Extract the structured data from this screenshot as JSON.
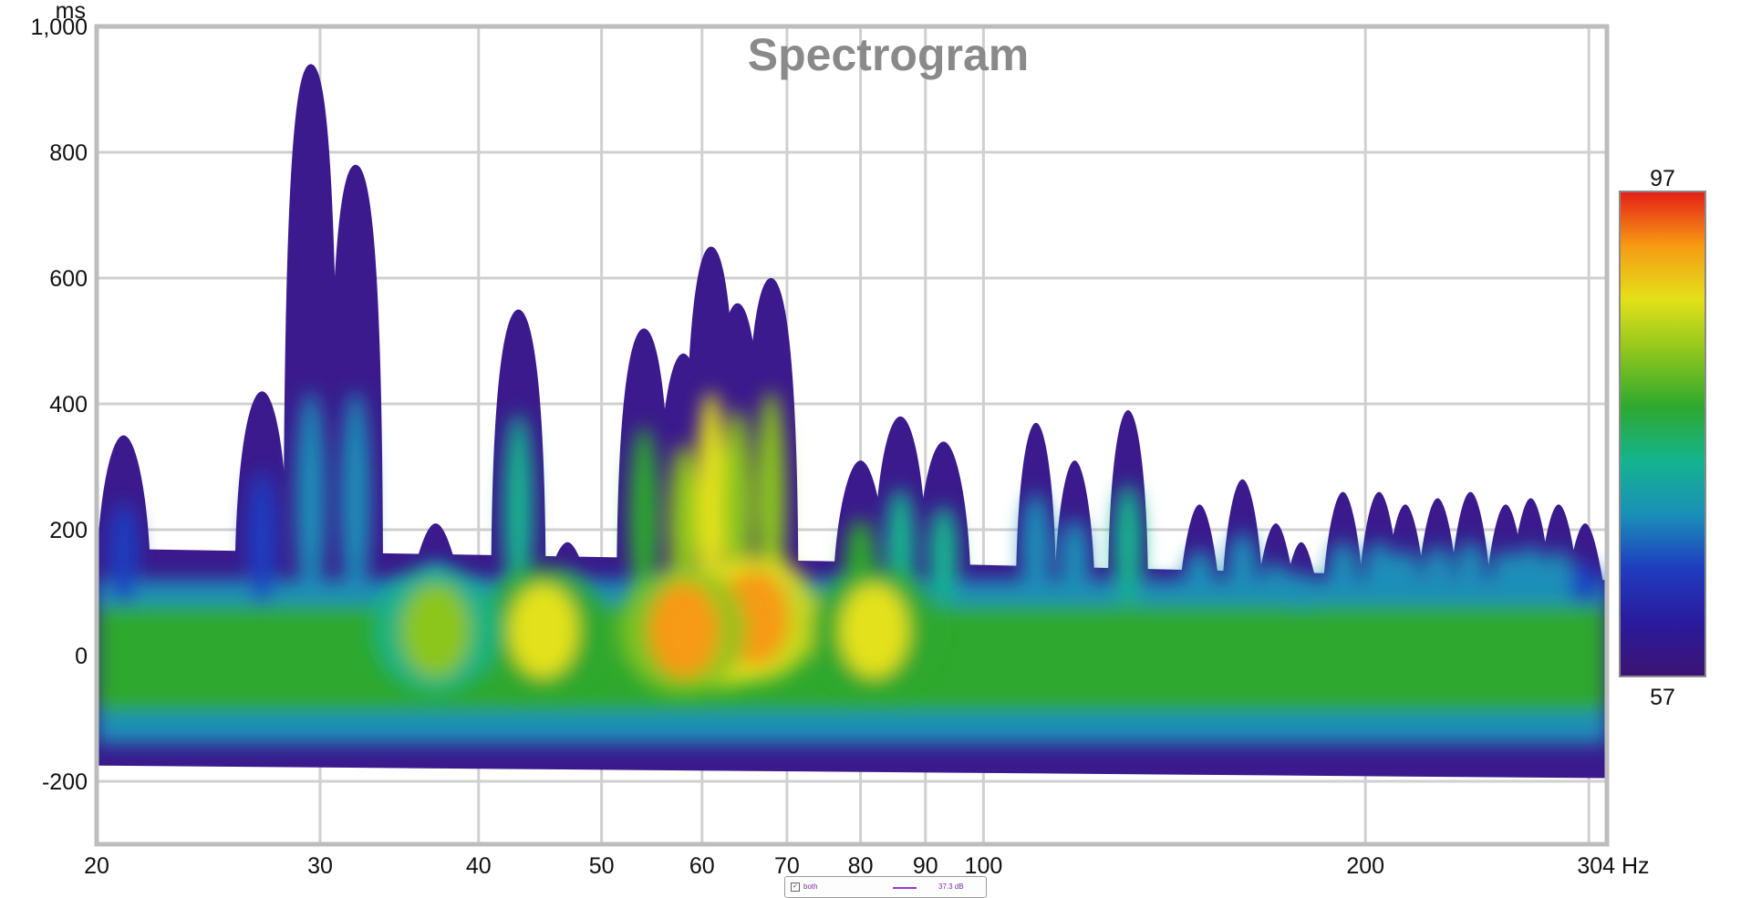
{
  "chart_data": {
    "type": "heatmap",
    "title": "Spectrogram",
    "x_unit": "Hz",
    "y_unit": "ms",
    "x_scale": "log",
    "xlim": [
      20,
      310
    ],
    "ylim": [
      -300,
      1000
    ],
    "x_ticks": [
      {
        "value": 20,
        "label": "20"
      },
      {
        "value": 30,
        "label": "30"
      },
      {
        "value": 40,
        "label": "40"
      },
      {
        "value": 50,
        "label": "50"
      },
      {
        "value": 60,
        "label": "60"
      },
      {
        "value": 70,
        "label": "70"
      },
      {
        "value": 80,
        "label": "80"
      },
      {
        "value": 90,
        "label": "90"
      },
      {
        "value": 100,
        "label": "100"
      },
      {
        "value": 200,
        "label": "200"
      },
      {
        "value": 304,
        "label": "304"
      }
    ],
    "x_grid": [
      20,
      30,
      40,
      50,
      60,
      70,
      80,
      90,
      100,
      200,
      300
    ],
    "y_ticks": [
      {
        "value": 1000,
        "label": "1,000"
      },
      {
        "value": 800,
        "label": "800"
      },
      {
        "value": 600,
        "label": "600"
      },
      {
        "value": 400,
        "label": "400"
      },
      {
        "value": 200,
        "label": "200"
      },
      {
        "value": 0,
        "label": "0"
      },
      {
        "value": -200,
        "label": "-200"
      }
    ],
    "grid": true,
    "colorbar": {
      "min": 57,
      "max": 97,
      "min_label": "57",
      "max_label": "97"
    },
    "floor": {
      "bottom": -175,
      "top_before": 150,
      "top_after": 120
    },
    "peaks": [
      {
        "freq": 21,
        "t_max": 350,
        "level": 74
      },
      {
        "freq": 27,
        "t_max": 420,
        "level": 78
      },
      {
        "freq": 29.5,
        "t_max": 940,
        "level": 80
      },
      {
        "freq": 32,
        "t_max": 780,
        "level": 80
      },
      {
        "freq": 37,
        "t_max": 210,
        "level": 82
      },
      {
        "freq": 43,
        "t_max": 550,
        "level": 84
      },
      {
        "freq": 47,
        "t_max": 180,
        "level": 82
      },
      {
        "freq": 54,
        "t_max": 520,
        "level": 89
      },
      {
        "freq": 58,
        "t_max": 480,
        "level": 92
      },
      {
        "freq": 61,
        "t_max": 650,
        "level": 96
      },
      {
        "freq": 64,
        "t_max": 560,
        "level": 95
      },
      {
        "freq": 68,
        "t_max": 600,
        "level": 93
      },
      {
        "freq": 80,
        "t_max": 310,
        "level": 88
      },
      {
        "freq": 86,
        "t_max": 380,
        "level": 86
      },
      {
        "freq": 93,
        "t_max": 340,
        "level": 83
      },
      {
        "freq": 110,
        "t_max": 370,
        "level": 82
      },
      {
        "freq": 118,
        "t_max": 310,
        "level": 82
      },
      {
        "freq": 130,
        "t_max": 390,
        "level": 83
      },
      {
        "freq": 148,
        "t_max": 240,
        "level": 81
      },
      {
        "freq": 160,
        "t_max": 280,
        "level": 81
      },
      {
        "freq": 170,
        "t_max": 210,
        "level": 80
      },
      {
        "freq": 178,
        "t_max": 180,
        "level": 80
      },
      {
        "freq": 192,
        "t_max": 260,
        "level": 81
      },
      {
        "freq": 205,
        "t_max": 260,
        "level": 81
      },
      {
        "freq": 215,
        "t_max": 240,
        "level": 80
      },
      {
        "freq": 228,
        "t_max": 250,
        "level": 81
      },
      {
        "freq": 242,
        "t_max": 260,
        "level": 81
      },
      {
        "freq": 258,
        "t_max": 240,
        "level": 80
      },
      {
        "freq": 270,
        "t_max": 250,
        "level": 80
      },
      {
        "freq": 284,
        "t_max": 240,
        "level": 79
      },
      {
        "freq": 298,
        "t_max": 210,
        "level": 78
      }
    ],
    "hotspots": [
      {
        "freq": 62,
        "t": 50,
        "level": 96
      },
      {
        "freq": 66,
        "t": 60,
        "level": 94
      },
      {
        "freq": 58,
        "t": 40,
        "level": 92
      },
      {
        "freq": 82,
        "t": 40,
        "level": 89
      },
      {
        "freq": 45,
        "t": 40,
        "level": 86
      },
      {
        "freq": 37,
        "t": 40,
        "level": 84
      }
    ],
    "legend": {
      "name": "both",
      "value": "37.3 dB"
    }
  }
}
